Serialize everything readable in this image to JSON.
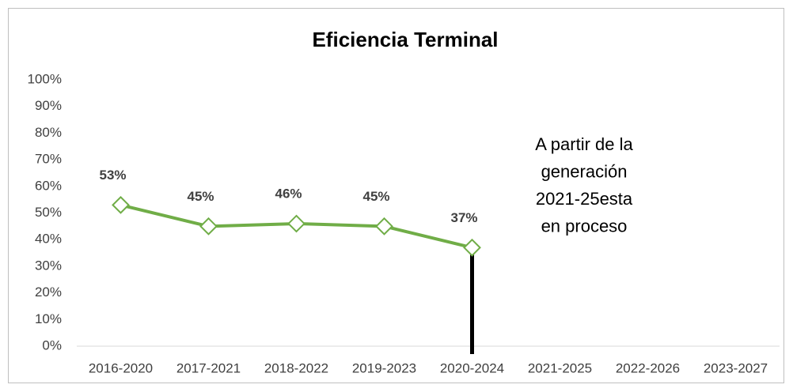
{
  "chart_data": {
    "type": "line",
    "title": "Eficiencia Terminal",
    "categories": [
      "2016-2020",
      "2017-2021",
      "2018-2022",
      "2019-2023",
      "2020-2024",
      "2021-2025",
      "2022-2026",
      "2023-2027"
    ],
    "series": [
      {
        "name": "Eficiencia Terminal",
        "color": "#70ad47",
        "values": [
          53,
          45,
          46,
          45,
          37,
          null,
          null,
          null
        ],
        "value_labels": [
          "53%",
          "45%",
          "46%",
          "45%",
          "37%",
          null,
          null,
          null
        ]
      }
    ],
    "ylim": [
      0,
      100
    ],
    "yticks": [
      {
        "value": 0,
        "label": "0%"
      },
      {
        "value": 10,
        "label": "10%"
      },
      {
        "value": 20,
        "label": "20%"
      },
      {
        "value": 30,
        "label": "30%"
      },
      {
        "value": 40,
        "label": "40%"
      },
      {
        "value": 50,
        "label": "50%"
      },
      {
        "value": 60,
        "label": "60%"
      },
      {
        "value": 70,
        "label": "70%"
      },
      {
        "value": 80,
        "label": "80%"
      },
      {
        "value": 90,
        "label": "90%"
      },
      {
        "value": 100,
        "label": "100%"
      }
    ],
    "annotation": [
      "A partir de la",
      "generación",
      "2021-25esta",
      "en proceso"
    ],
    "grid": false
  }
}
